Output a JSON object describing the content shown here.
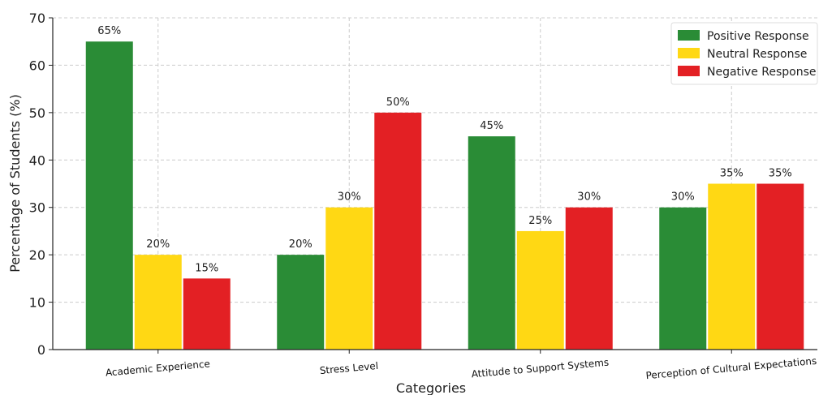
{
  "chart_data": {
    "type": "bar",
    "title": "",
    "xlabel": "Categories",
    "ylabel": "Percentage of Students (%)",
    "ylim": [
      0,
      70
    ],
    "yticks": [
      0,
      10,
      20,
      30,
      40,
      50,
      60,
      70
    ],
    "grid": true,
    "legend_position": "top-right",
    "categories": [
      "Academic Experience",
      "Stress Level",
      "Attitude to Support Systems",
      "Perception of Cultural Expectations"
    ],
    "series": [
      {
        "name": "Positive Response",
        "values": [
          65,
          20,
          45,
          30
        ],
        "labels": [
          "65%",
          "20%",
          "45%",
          "30%"
        ],
        "color": "#2a8c36"
      },
      {
        "name": "Neutral Response",
        "values": [
          20,
          30,
          25,
          35
        ],
        "labels": [
          "20%",
          "30%",
          "25%",
          "35%"
        ],
        "color": "#ffd814"
      },
      {
        "name": "Negative Response",
        "values": [
          15,
          50,
          30,
          35
        ],
        "labels": [
          "15%",
          "50%",
          "30%",
          "35%"
        ],
        "color": "#e32024"
      }
    ]
  }
}
